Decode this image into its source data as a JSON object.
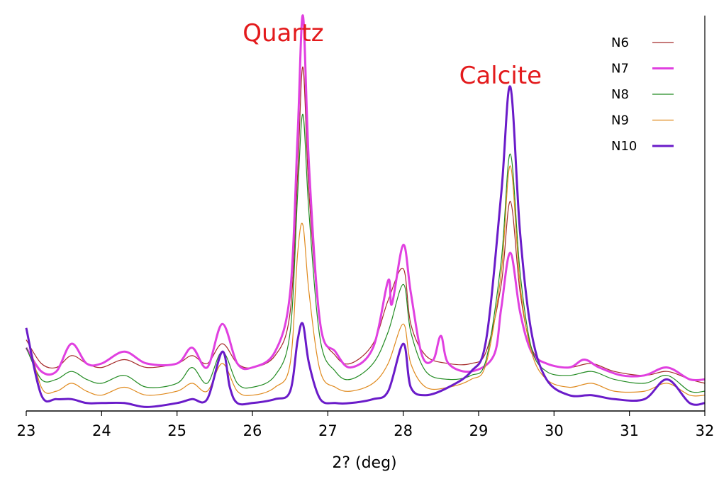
{
  "chart_data": {
    "type": "line",
    "title": "",
    "xlabel": "2? (deg)",
    "ylabel": "",
    "xlim": [
      23,
      32
    ],
    "ylim": [
      0,
      1
    ],
    "xticks": [
      23,
      24,
      25,
      26,
      27,
      28,
      29,
      30,
      31,
      32
    ],
    "xtick_labels": [
      "23",
      "24",
      "25",
      "26",
      "27",
      "28",
      "29",
      "30",
      "31",
      "32"
    ],
    "grid": false,
    "legend": "top-right",
    "annotations": [
      {
        "text": "Quartz",
        "x": 26.67,
        "color": "#e31a1c"
      },
      {
        "text": "Calcite",
        "x": 29.42,
        "color": "#e31a1c"
      }
    ],
    "series": [
      {
        "name": "N6",
        "color": "#a52a2a",
        "width": 1.2,
        "points": [
          [
            23.0,
            0.18
          ],
          [
            23.2,
            0.12
          ],
          [
            23.4,
            0.11
          ],
          [
            23.6,
            0.14
          ],
          [
            23.8,
            0.12
          ],
          [
            24.0,
            0.11
          ],
          [
            24.3,
            0.13
          ],
          [
            24.6,
            0.11
          ],
          [
            25.0,
            0.12
          ],
          [
            25.2,
            0.14
          ],
          [
            25.4,
            0.12
          ],
          [
            25.6,
            0.17
          ],
          [
            25.8,
            0.12
          ],
          [
            26.0,
            0.11
          ],
          [
            26.3,
            0.14
          ],
          [
            26.5,
            0.25
          ],
          [
            26.6,
            0.6
          ],
          [
            26.67,
            0.87
          ],
          [
            26.75,
            0.55
          ],
          [
            26.9,
            0.22
          ],
          [
            27.1,
            0.14
          ],
          [
            27.3,
            0.12
          ],
          [
            27.6,
            0.17
          ],
          [
            27.8,
            0.28
          ],
          [
            28.0,
            0.36
          ],
          [
            28.1,
            0.22
          ],
          [
            28.3,
            0.14
          ],
          [
            28.6,
            0.12
          ],
          [
            28.9,
            0.12
          ],
          [
            29.1,
            0.15
          ],
          [
            29.3,
            0.32
          ],
          [
            29.42,
            0.53
          ],
          [
            29.55,
            0.3
          ],
          [
            29.7,
            0.16
          ],
          [
            29.9,
            0.12
          ],
          [
            30.2,
            0.11
          ],
          [
            30.5,
            0.12
          ],
          [
            30.8,
            0.1
          ],
          [
            31.2,
            0.09
          ],
          [
            31.5,
            0.1
          ],
          [
            31.8,
            0.08
          ],
          [
            32.0,
            0.07
          ]
        ]
      },
      {
        "name": "N7",
        "color": "#e040e0",
        "width": 3,
        "points": [
          [
            23.0,
            0.16
          ],
          [
            23.2,
            0.1
          ],
          [
            23.4,
            0.1
          ],
          [
            23.6,
            0.17
          ],
          [
            23.8,
            0.12
          ],
          [
            24.0,
            0.12
          ],
          [
            24.3,
            0.15
          ],
          [
            24.6,
            0.12
          ],
          [
            25.0,
            0.12
          ],
          [
            25.2,
            0.16
          ],
          [
            25.4,
            0.11
          ],
          [
            25.6,
            0.22
          ],
          [
            25.8,
            0.12
          ],
          [
            26.0,
            0.11
          ],
          [
            26.3,
            0.15
          ],
          [
            26.5,
            0.3
          ],
          [
            26.6,
            0.7
          ],
          [
            26.67,
            1.0
          ],
          [
            26.75,
            0.62
          ],
          [
            26.9,
            0.22
          ],
          [
            27.1,
            0.15
          ],
          [
            27.3,
            0.11
          ],
          [
            27.6,
            0.16
          ],
          [
            27.8,
            0.33
          ],
          [
            27.85,
            0.27
          ],
          [
            28.0,
            0.42
          ],
          [
            28.1,
            0.3
          ],
          [
            28.25,
            0.14
          ],
          [
            28.4,
            0.13
          ],
          [
            28.5,
            0.19
          ],
          [
            28.6,
            0.12
          ],
          [
            28.9,
            0.1
          ],
          [
            29.2,
            0.14
          ],
          [
            29.3,
            0.26
          ],
          [
            29.42,
            0.4
          ],
          [
            29.55,
            0.25
          ],
          [
            29.7,
            0.15
          ],
          [
            29.9,
            0.12
          ],
          [
            30.2,
            0.11
          ],
          [
            30.4,
            0.13
          ],
          [
            30.6,
            0.11
          ],
          [
            30.9,
            0.09
          ],
          [
            31.2,
            0.09
          ],
          [
            31.5,
            0.11
          ],
          [
            31.8,
            0.08
          ],
          [
            32.0,
            0.08
          ]
        ]
      },
      {
        "name": "N8",
        "color": "#228b22",
        "width": 1.2,
        "points": [
          [
            23.0,
            0.16
          ],
          [
            23.2,
            0.08
          ],
          [
            23.4,
            0.08
          ],
          [
            23.6,
            0.1
          ],
          [
            23.8,
            0.08
          ],
          [
            24.0,
            0.07
          ],
          [
            24.3,
            0.09
          ],
          [
            24.6,
            0.06
          ],
          [
            25.0,
            0.07
          ],
          [
            25.2,
            0.11
          ],
          [
            25.4,
            0.07
          ],
          [
            25.6,
            0.15
          ],
          [
            25.8,
            0.07
          ],
          [
            26.0,
            0.06
          ],
          [
            26.3,
            0.09
          ],
          [
            26.5,
            0.2
          ],
          [
            26.6,
            0.55
          ],
          [
            26.67,
            0.75
          ],
          [
            26.75,
            0.5
          ],
          [
            26.9,
            0.18
          ],
          [
            27.1,
            0.1
          ],
          [
            27.3,
            0.08
          ],
          [
            27.6,
            0.12
          ],
          [
            27.8,
            0.2
          ],
          [
            28.0,
            0.32
          ],
          [
            28.1,
            0.2
          ],
          [
            28.3,
            0.1
          ],
          [
            28.6,
            0.08
          ],
          [
            28.9,
            0.09
          ],
          [
            29.1,
            0.13
          ],
          [
            29.3,
            0.38
          ],
          [
            29.42,
            0.65
          ],
          [
            29.55,
            0.35
          ],
          [
            29.7,
            0.16
          ],
          [
            29.9,
            0.1
          ],
          [
            30.2,
            0.09
          ],
          [
            30.5,
            0.1
          ],
          [
            30.8,
            0.08
          ],
          [
            31.2,
            0.07
          ],
          [
            31.5,
            0.09
          ],
          [
            31.8,
            0.05
          ],
          [
            32.0,
            0.05
          ]
        ]
      },
      {
        "name": "N9",
        "color": "#e08a1e",
        "width": 1.2,
        "points": [
          [
            23.0,
            0.21
          ],
          [
            23.2,
            0.06
          ],
          [
            23.4,
            0.05
          ],
          [
            23.6,
            0.07
          ],
          [
            23.8,
            0.05
          ],
          [
            24.0,
            0.04
          ],
          [
            24.3,
            0.06
          ],
          [
            24.6,
            0.04
          ],
          [
            25.0,
            0.05
          ],
          [
            25.2,
            0.07
          ],
          [
            25.4,
            0.05
          ],
          [
            25.6,
            0.12
          ],
          [
            25.8,
            0.05
          ],
          [
            26.0,
            0.04
          ],
          [
            26.3,
            0.06
          ],
          [
            26.5,
            0.12
          ],
          [
            26.6,
            0.4
          ],
          [
            26.67,
            0.47
          ],
          [
            26.75,
            0.3
          ],
          [
            26.9,
            0.1
          ],
          [
            27.1,
            0.06
          ],
          [
            27.3,
            0.05
          ],
          [
            27.6,
            0.07
          ],
          [
            27.8,
            0.12
          ],
          [
            28.0,
            0.22
          ],
          [
            28.1,
            0.12
          ],
          [
            28.3,
            0.06
          ],
          [
            28.6,
            0.06
          ],
          [
            28.9,
            0.08
          ],
          [
            29.1,
            0.12
          ],
          [
            29.3,
            0.35
          ],
          [
            29.42,
            0.62
          ],
          [
            29.55,
            0.32
          ],
          [
            29.7,
            0.15
          ],
          [
            29.9,
            0.08
          ],
          [
            30.2,
            0.06
          ],
          [
            30.5,
            0.07
          ],
          [
            30.8,
            0.05
          ],
          [
            31.2,
            0.05
          ],
          [
            31.5,
            0.07
          ],
          [
            31.8,
            0.04
          ],
          [
            32.0,
            0.04
          ]
        ]
      },
      {
        "name": "N10",
        "color": "#6a1bc9",
        "width": 3,
        "points": [
          [
            23.0,
            0.21
          ],
          [
            23.2,
            0.04
          ],
          [
            23.4,
            0.03
          ],
          [
            23.6,
            0.03
          ],
          [
            23.8,
            0.02
          ],
          [
            24.0,
            0.02
          ],
          [
            24.3,
            0.02
          ],
          [
            24.6,
            0.01
          ],
          [
            25.0,
            0.02
          ],
          [
            25.2,
            0.03
          ],
          [
            25.4,
            0.03
          ],
          [
            25.6,
            0.15
          ],
          [
            25.7,
            0.06
          ],
          [
            25.8,
            0.02
          ],
          [
            26.0,
            0.02
          ],
          [
            26.3,
            0.03
          ],
          [
            26.5,
            0.05
          ],
          [
            26.6,
            0.18
          ],
          [
            26.67,
            0.22
          ],
          [
            26.75,
            0.12
          ],
          [
            26.9,
            0.03
          ],
          [
            27.1,
            0.02
          ],
          [
            27.3,
            0.02
          ],
          [
            27.6,
            0.03
          ],
          [
            27.8,
            0.05
          ],
          [
            28.0,
            0.17
          ],
          [
            28.1,
            0.06
          ],
          [
            28.3,
            0.04
          ],
          [
            28.6,
            0.06
          ],
          [
            28.9,
            0.1
          ],
          [
            29.1,
            0.18
          ],
          [
            29.3,
            0.55
          ],
          [
            29.42,
            0.82
          ],
          [
            29.55,
            0.45
          ],
          [
            29.7,
            0.2
          ],
          [
            29.9,
            0.08
          ],
          [
            30.2,
            0.04
          ],
          [
            30.5,
            0.04
          ],
          [
            30.8,
            0.03
          ],
          [
            31.2,
            0.03
          ],
          [
            31.5,
            0.08
          ],
          [
            31.8,
            0.02
          ],
          [
            32.0,
            0.02
          ]
        ]
      }
    ]
  }
}
